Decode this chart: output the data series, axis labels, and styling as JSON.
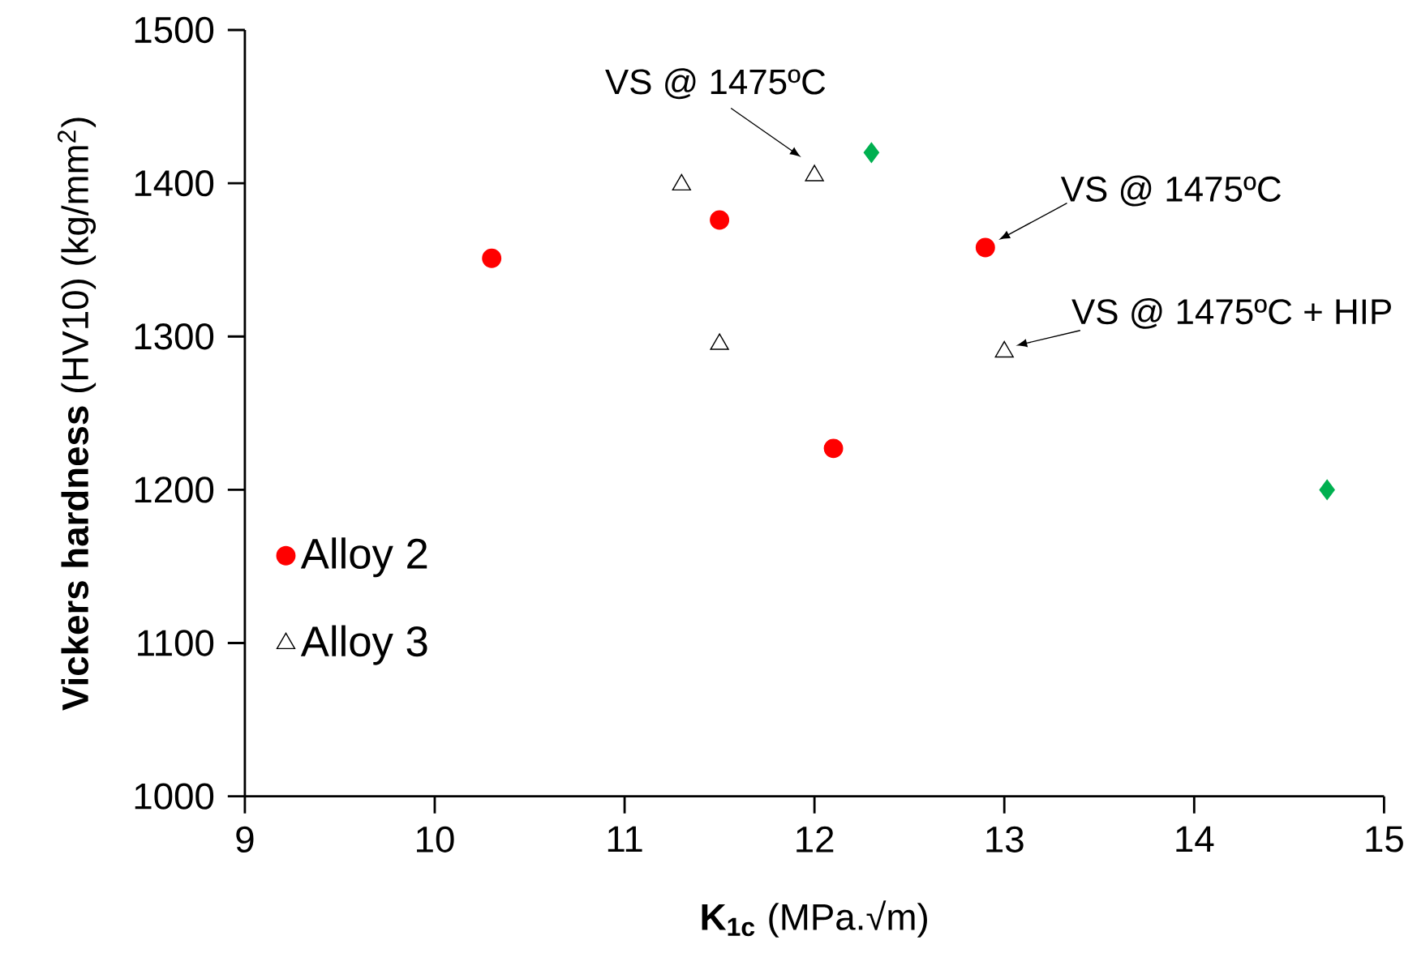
{
  "chart_data": {
    "type": "scatter",
    "xlabel": "**K$_{1c}$** (MPa.√m)",
    "ylabel": "**Vickers hardness** (HV10) (kg/mm$^{2}$)",
    "xlim": [
      9,
      15
    ],
    "ylim": [
      1000,
      1500
    ],
    "xticks": [
      9,
      10,
      11,
      12,
      13,
      14,
      15
    ],
    "yticks": [
      1000,
      1100,
      1200,
      1300,
      1400,
      1500
    ],
    "grid": false,
    "legend": "left",
    "series": [
      {
        "name": "Alloy 2",
        "color": "#ff0000",
        "marker": "circle",
        "x": [
          10.3,
          11.5,
          12.9,
          12.1
        ],
        "values": [
          1351,
          1376,
          1358,
          1227
        ]
      },
      {
        "name": "Alloy 3",
        "color": "#000000",
        "marker": "triangle",
        "x": [
          11.3,
          12.0,
          11.5,
          13.0
        ],
        "values": [
          1399,
          1405,
          1295,
          1290
        ]
      },
      {
        "color": "#00b050",
        "marker": "diamond",
        "x": [
          12.3,
          14.7
        ],
        "values": [
          1420,
          1200
        ]
      }
    ],
    "annotations": [
      {
        "text": "VS @ 1475ºC",
        "x": 12.0,
        "y": 1405
      },
      {
        "text": "VS @ 1475ºC",
        "x": 12.9,
        "y": 1358
      },
      {
        "text": "VS @ 1475ºC + HIP",
        "x": 13.0,
        "y": 1290
      }
    ]
  }
}
